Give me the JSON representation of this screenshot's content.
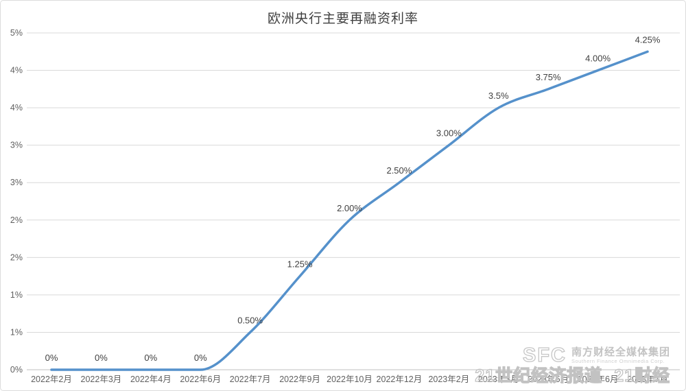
{
  "title": "欧洲央行主要再融资利率",
  "chart_data": {
    "type": "line",
    "title": "欧洲央行主要再融资利率",
    "categories": [
      "2022年2月",
      "2022年3月",
      "2022年4月",
      "2022年6月",
      "2022年7月",
      "2022年9月",
      "2022年10月",
      "2022年12月",
      "2023年2月",
      "2023年3月",
      "2023年5月",
      "2023年6月",
      "2023年7月"
    ],
    "values": [
      0,
      0,
      0,
      0,
      0.5,
      1.25,
      2.0,
      2.5,
      3.0,
      3.5,
      3.75,
      4.0,
      4.25
    ],
    "point_labels": [
      "0%",
      "0%",
      "0%",
      "0%",
      "0.50%",
      "1.25%",
      "2.00%",
      "2.50%",
      "3.00%",
      "3.5%",
      "3.75%",
      "4.00%",
      "4.25%"
    ],
    "y_ticks_top_to_bottom": [
      "5%",
      "4%",
      "4%",
      "3%",
      "3%",
      "2%",
      "2%",
      "1%",
      "1%",
      "0%"
    ],
    "ylim": [
      0,
      4.5
    ],
    "y_step": 0.5,
    "grid": true,
    "legend_position": "none",
    "xlabel": "",
    "ylabel": "",
    "line_color": "#5591CB",
    "grid_color": "#D9D9D9",
    "axis_line_color": "#BFBFBF",
    "data_label_color": "#404040",
    "tick_label_color": "#5f5f5f"
  },
  "watermark": {
    "logo_text": "SFC",
    "org_cn": "南方财经全媒体集团",
    "org_en": "Southern Finance Omnimedia Corp.",
    "brand_1": "21世纪经济报道",
    "brand_2": "21财经"
  }
}
